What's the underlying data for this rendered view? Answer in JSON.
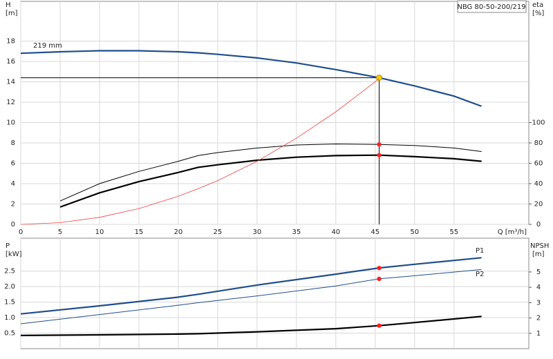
{
  "chart_data": [
    {
      "type": "line",
      "title": "NBG 80-50-200/219",
      "y_label": "H",
      "y_unit": "[m]",
      "y2_label": "eta",
      "y2_unit": "[%]",
      "x_label": "Q [m³/h]",
      "x": [
        0,
        5,
        10,
        15,
        20,
        22.5,
        25,
        30,
        35,
        40,
        45.5,
        50,
        55,
        58.5
      ],
      "xlim": [
        0,
        64.5
      ],
      "xticks": [
        0,
        5,
        10,
        15,
        20,
        25,
        30,
        35,
        40,
        45,
        50,
        55
      ],
      "ylim": [
        0,
        21.9
      ],
      "yticks": [
        0,
        2,
        4,
        6,
        8,
        10,
        12,
        14,
        16,
        18
      ],
      "y2lim": [
        0,
        219
      ],
      "y2ticks": [
        0,
        20,
        40,
        60,
        80,
        100
      ],
      "grid": true,
      "duty_point": {
        "x": 45.5,
        "y": 14.4,
        "color": "#f5d000"
      },
      "series": [
        {
          "name": "219 mm",
          "color": "#1f4e8c",
          "style": "thick",
          "values": [
            16.8,
            16.95,
            17.05,
            17.05,
            16.95,
            16.85,
            16.7,
            16.35,
            15.85,
            15.2,
            14.4,
            13.6,
            12.6,
            11.6
          ]
        },
        {
          "color": "#000000",
          "style": "thin",
          "axis": "y2",
          "values": [
            null,
            23,
            40,
            52,
            62,
            67.5,
            70.5,
            75,
            78,
            79,
            78.5,
            77.5,
            75,
            71.5
          ]
        },
        {
          "color": "#000000",
          "style": "thick",
          "axis": "y2",
          "values": [
            null,
            17,
            31,
            42,
            51,
            56,
            58.5,
            63,
            66,
            67.5,
            68,
            66.5,
            64.5,
            62
          ]
        },
        {
          "color": "#f04040",
          "style": "hair",
          "values": [
            0,
            0.17,
            0.69,
            1.55,
            2.76,
            3.5,
            4.3,
            6.2,
            8.46,
            11.05,
            14.3,
            null,
            null,
            null
          ]
        }
      ]
    },
    {
      "type": "line",
      "y_label": "P",
      "y_unit": "[kW]",
      "y2_label": "NPSH",
      "y2_unit": "[m]",
      "x": [
        0,
        10,
        20,
        22.5,
        30,
        40,
        45.5,
        50,
        58.5
      ],
      "xlim": [
        0,
        64.5
      ],
      "ylim": [
        0,
        3.56
      ],
      "yticks": [
        0.5,
        {
          "value": 1,
          "label": "1.0"
        },
        1.5,
        {
          "value": 2,
          "label": "2.0"
        },
        2.5
      ],
      "y2lim": [
        0,
        7.2
      ],
      "y2ticks": [
        1,
        2,
        3,
        4,
        5
      ],
      "grid": true,
      "duty_point": {
        "x": 45.5
      },
      "series": [
        {
          "name": "P1",
          "color": "#1f4e8c",
          "style": "thick",
          "values": [
            1.12,
            1.38,
            1.66,
            1.75,
            2.05,
            2.4,
            2.6,
            2.72,
            2.93
          ]
        },
        {
          "name": "P2",
          "color": "#1f4e8c",
          "style": "thin",
          "values": [
            0.8,
            1.1,
            1.4,
            1.48,
            1.7,
            2.02,
            2.25,
            2.35,
            2.55
          ]
        },
        {
          "color": "#000000",
          "style": "thick",
          "axis": "y2",
          "values": [
            0.86,
            0.9,
            0.95,
            0.97,
            1.1,
            1.3,
            1.5,
            1.7,
            2.1
          ]
        }
      ]
    }
  ]
}
